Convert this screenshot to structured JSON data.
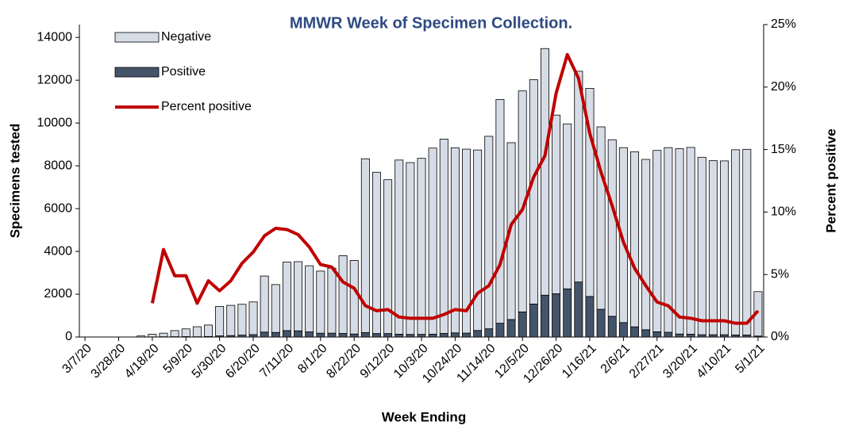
{
  "chart_data": {
    "type": "bar",
    "title": "MMWR Week of Specimen Collection.",
    "x_label": "Week Ending",
    "y_label": "Specimens tested",
    "y2_label": "Percent positive",
    "categories": [
      "3/7/20",
      null,
      null,
      "3/28/20",
      null,
      null,
      "4/18/20",
      null,
      null,
      "5/9/20",
      null,
      null,
      "5/30/20",
      null,
      null,
      "6/20/20",
      null,
      null,
      "7/11/20",
      null,
      null,
      "8/1/20",
      null,
      null,
      "8/22/20",
      null,
      null,
      "9/12/20",
      null,
      null,
      "10/3/20",
      null,
      null,
      "10/24/20",
      null,
      null,
      "11/14/20",
      null,
      null,
      "12/5/20",
      null,
      null,
      "12/26/20",
      null,
      null,
      "1/16/21",
      null,
      null,
      "2/6/21",
      null,
      null,
      "2/27/21",
      null,
      null,
      "3/20/21",
      null,
      null,
      "4/10/21",
      null,
      null,
      "5/1/21"
    ],
    "series": [
      {
        "name": "Negative",
        "color": "#d6dce5",
        "stacked": true,
        "values": [
          null,
          null,
          null,
          null,
          null,
          50,
          126,
          167,
          285,
          361,
          467,
          535,
          1377,
          1413,
          1440,
          1528,
          2619,
          2237,
          3199,
          3231,
          3090,
          2901,
          3040,
          3633,
          3440,
          8122,
          7538,
          7188,
          8138,
          8028,
          8225,
          8698,
          9083,
          8646,
          8596,
          8434,
          8995,
          10456,
          8263,
          10327,
          10490,
          11525,
          8348,
          7709,
          9849,
          9726,
          8524,
          8252,
          8177,
          8184,
          7960,
          8476,
          8629,
          8659,
          8727,
          8291,
          8133,
          8123,
          8654,
          8674,
          2075
        ]
      },
      {
        "name": "Positive",
        "color": "#44546a",
        "stacked": true,
        "values": [
          null,
          null,
          null,
          null,
          null,
          0,
          4,
          13,
          15,
          19,
          13,
          25,
          53,
          67,
          90,
          112,
          231,
          213,
          301,
          289,
          240,
          179,
          180,
          167,
          140,
          208,
          162,
          162,
          132,
          122,
          125,
          132,
          167,
          194,
          184,
          306,
          385,
          644,
          817,
          1173,
          1540,
          1955,
          2022,
          2251,
          2571,
          1894,
          1296,
          968,
          673,
          476,
          340,
          244,
          221,
          141,
          133,
          109,
          107,
          107,
          96,
          96,
          45
        ]
      },
      {
        "name": "Percent positive",
        "color": "#c00000",
        "type": "line",
        "axis": "y2",
        "values": [
          null,
          null,
          null,
          null,
          null,
          null,
          2.7,
          7.0,
          4.9,
          4.9,
          2.7,
          4.5,
          3.7,
          4.5,
          5.9,
          6.8,
          8.1,
          8.7,
          8.6,
          8.2,
          7.2,
          5.8,
          5.6,
          4.4,
          3.9,
          2.5,
          2.1,
          2.2,
          1.6,
          1.5,
          1.5,
          1.5,
          1.8,
          2.2,
          2.1,
          3.5,
          4.1,
          5.8,
          9.0,
          10.2,
          12.8,
          14.5,
          19.5,
          22.6,
          20.7,
          16.3,
          13.2,
          10.5,
          7.6,
          5.5,
          4.1,
          2.8,
          2.5,
          1.6,
          1.5,
          1.3,
          1.3,
          1.3,
          1.1,
          1.1,
          2.1
        ]
      }
    ],
    "ylim": [
      0,
      14600
    ],
    "yticks": [
      0,
      2000,
      4000,
      6000,
      8000,
      10000,
      12000,
      14000
    ],
    "y2lim": [
      0,
      25
    ],
    "y2ticks": [
      {
        "value": 0,
        "label": "0%"
      },
      {
        "value": 5,
        "label": "5%"
      },
      {
        "value": 10,
        "label": "10%"
      },
      {
        "value": 15,
        "label": "15%"
      },
      {
        "value": 20,
        "label": "20%"
      },
      {
        "value": 25,
        "label": "25%"
      }
    ],
    "legend": "top-left"
  }
}
